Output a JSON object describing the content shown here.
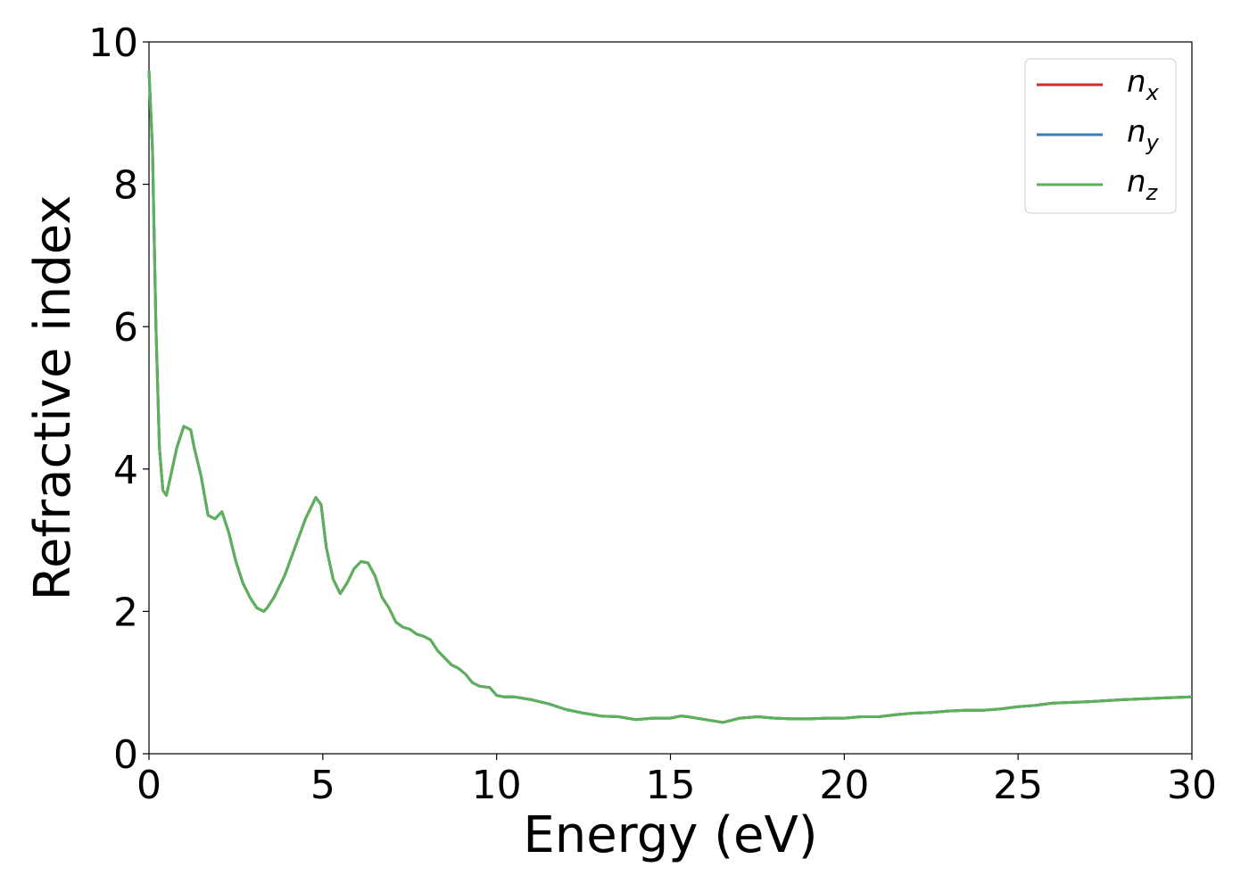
{
  "chart_data": {
    "type": "line",
    "title": "",
    "xlabel": "Energy (eV)",
    "ylabel": "Refractive index",
    "xlim": [
      0,
      30
    ],
    "ylim": [
      0,
      10
    ],
    "xticks": [
      0,
      5,
      10,
      15,
      20,
      25,
      30
    ],
    "yticks": [
      0,
      2,
      4,
      6,
      8,
      10
    ],
    "grid": false,
    "legend_position": "top-right",
    "x": [
      0,
      0.1,
      0.2,
      0.3,
      0.4,
      0.5,
      0.6,
      0.8,
      1.0,
      1.2,
      1.3,
      1.5,
      1.7,
      1.9,
      2.1,
      2.3,
      2.5,
      2.7,
      2.9,
      3.1,
      3.3,
      3.4,
      3.6,
      3.9,
      4.2,
      4.5,
      4.8,
      4.95,
      5.1,
      5.3,
      5.5,
      5.7,
      5.9,
      6.1,
      6.3,
      6.5,
      6.7,
      6.9,
      7.1,
      7.3,
      7.5,
      7.7,
      7.9,
      8.1,
      8.3,
      8.5,
      8.7,
      8.9,
      9.1,
      9.3,
      9.5,
      9.8,
      10.0,
      10.2,
      10.5,
      11.0,
      11.5,
      12.0,
      12.5,
      13.0,
      13.5,
      14.0,
      14.5,
      15.0,
      15.3,
      15.5,
      16.0,
      16.5,
      17.0,
      17.5,
      18.0,
      18.5,
      19.0,
      19.5,
      20.0,
      20.5,
      21.0,
      21.5,
      22.0,
      22.5,
      23.0,
      23.5,
      24.0,
      24.5,
      25.0,
      25.5,
      26.0,
      27.0,
      28.0,
      29.0,
      30.0
    ],
    "series": [
      {
        "name": "n_x",
        "label_main": "n",
        "label_sub": "x",
        "color": "#d62728",
        "values": [
          9.6,
          8.5,
          6.0,
          4.3,
          3.7,
          3.63,
          3.85,
          4.3,
          4.6,
          4.55,
          4.3,
          3.9,
          3.35,
          3.3,
          3.4,
          3.1,
          2.7,
          2.4,
          2.2,
          2.05,
          2.0,
          2.05,
          2.2,
          2.5,
          2.9,
          3.3,
          3.6,
          3.5,
          2.9,
          2.45,
          2.25,
          2.4,
          2.6,
          2.7,
          2.68,
          2.5,
          2.2,
          2.05,
          1.85,
          1.78,
          1.75,
          1.68,
          1.65,
          1.6,
          1.45,
          1.35,
          1.25,
          1.2,
          1.12,
          1.0,
          0.95,
          0.93,
          0.82,
          0.8,
          0.8,
          0.76,
          0.7,
          0.62,
          0.57,
          0.53,
          0.52,
          0.48,
          0.5,
          0.5,
          0.53,
          0.52,
          0.48,
          0.44,
          0.5,
          0.52,
          0.5,
          0.49,
          0.49,
          0.5,
          0.5,
          0.52,
          0.52,
          0.55,
          0.57,
          0.58,
          0.6,
          0.61,
          0.61,
          0.63,
          0.66,
          0.68,
          0.71,
          0.73,
          0.76,
          0.78,
          0.8
        ]
      },
      {
        "name": "n_y",
        "label_main": "n",
        "label_sub": "y",
        "color": "#377eb8",
        "values": [
          9.6,
          8.5,
          6.0,
          4.3,
          3.7,
          3.63,
          3.85,
          4.3,
          4.6,
          4.55,
          4.3,
          3.9,
          3.35,
          3.3,
          3.4,
          3.1,
          2.7,
          2.4,
          2.2,
          2.05,
          2.0,
          2.05,
          2.2,
          2.5,
          2.9,
          3.3,
          3.6,
          3.5,
          2.9,
          2.45,
          2.25,
          2.4,
          2.6,
          2.7,
          2.68,
          2.5,
          2.2,
          2.05,
          1.85,
          1.78,
          1.75,
          1.68,
          1.65,
          1.6,
          1.45,
          1.35,
          1.25,
          1.2,
          1.12,
          1.0,
          0.95,
          0.93,
          0.82,
          0.8,
          0.8,
          0.76,
          0.7,
          0.62,
          0.57,
          0.53,
          0.52,
          0.48,
          0.5,
          0.5,
          0.53,
          0.52,
          0.48,
          0.44,
          0.5,
          0.52,
          0.5,
          0.49,
          0.49,
          0.5,
          0.5,
          0.52,
          0.52,
          0.55,
          0.57,
          0.58,
          0.6,
          0.61,
          0.61,
          0.63,
          0.66,
          0.68,
          0.71,
          0.73,
          0.76,
          0.78,
          0.8
        ]
      },
      {
        "name": "n_z",
        "label_main": "n",
        "label_sub": "z",
        "color": "#5cb25a",
        "values": [
          9.6,
          8.5,
          6.0,
          4.3,
          3.7,
          3.63,
          3.85,
          4.3,
          4.6,
          4.55,
          4.3,
          3.9,
          3.35,
          3.3,
          3.4,
          3.1,
          2.7,
          2.4,
          2.2,
          2.05,
          2.0,
          2.05,
          2.2,
          2.5,
          2.9,
          3.3,
          3.6,
          3.5,
          2.9,
          2.45,
          2.25,
          2.4,
          2.6,
          2.7,
          2.68,
          2.5,
          2.2,
          2.05,
          1.85,
          1.78,
          1.75,
          1.68,
          1.65,
          1.6,
          1.45,
          1.35,
          1.25,
          1.2,
          1.12,
          1.0,
          0.95,
          0.93,
          0.82,
          0.8,
          0.8,
          0.76,
          0.7,
          0.62,
          0.57,
          0.53,
          0.52,
          0.48,
          0.5,
          0.5,
          0.53,
          0.52,
          0.48,
          0.44,
          0.5,
          0.52,
          0.5,
          0.49,
          0.49,
          0.5,
          0.5,
          0.52,
          0.52,
          0.55,
          0.57,
          0.58,
          0.6,
          0.61,
          0.61,
          0.63,
          0.66,
          0.68,
          0.71,
          0.73,
          0.76,
          0.78,
          0.8
        ]
      }
    ]
  }
}
